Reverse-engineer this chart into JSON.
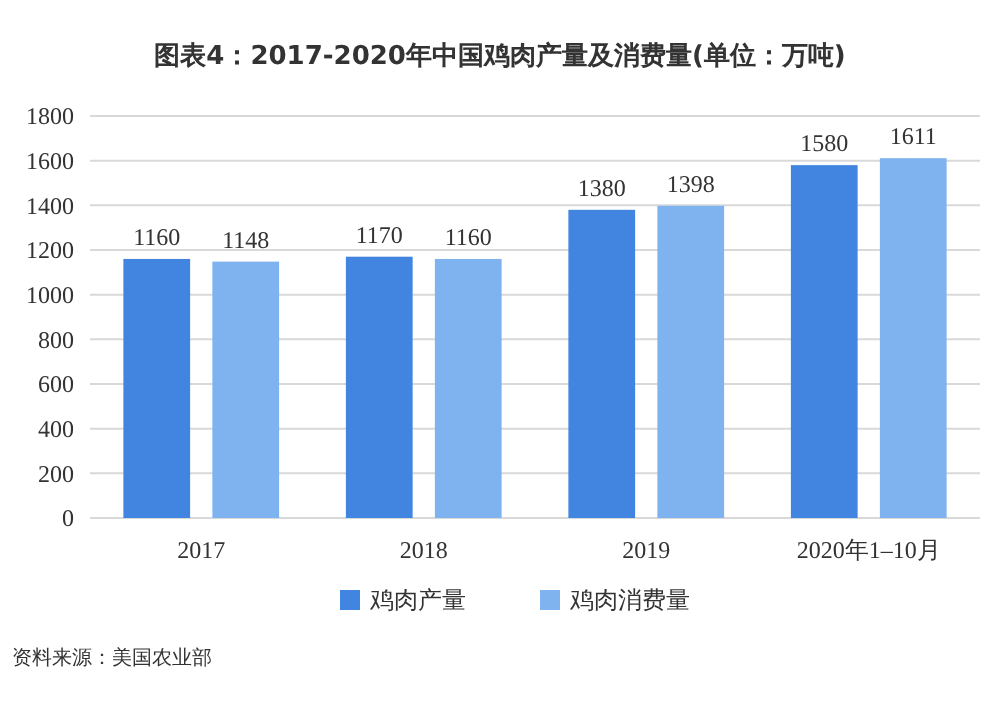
{
  "chart_data": {
    "type": "bar",
    "title": "图表4：2017-2020年中国鸡肉产量及消费量(单位：万吨)",
    "categories": [
      "2017",
      "2018",
      "2019",
      "2020年1–10月"
    ],
    "series": [
      {
        "name": "鸡肉产量",
        "color": "#4285e0",
        "values": [
          1160,
          1170,
          1380,
          1580
        ]
      },
      {
        "name": "鸡肉消费量",
        "color": "#7eb3ef",
        "values": [
          1148,
          1160,
          1398,
          1611
        ]
      }
    ],
    "ylim": [
      0,
      1800
    ],
    "yticks": [
      0,
      200,
      400,
      600,
      800,
      1000,
      1200,
      1400,
      1600,
      1800
    ],
    "grid": "y",
    "data_labels": true,
    "legend": "bottom",
    "annotations": [
      "资料来源：美国农业部"
    ]
  }
}
